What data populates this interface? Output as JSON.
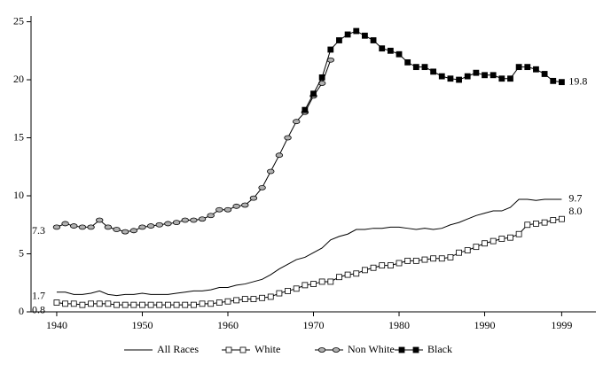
{
  "chart_data": {
    "type": "line",
    "x": [
      1940,
      1941,
      1942,
      1943,
      1944,
      1945,
      1946,
      1947,
      1948,
      1949,
      1950,
      1951,
      1952,
      1953,
      1954,
      1955,
      1956,
      1957,
      1958,
      1959,
      1960,
      1961,
      1962,
      1963,
      1964,
      1965,
      1966,
      1967,
      1968,
      1969,
      1970,
      1971,
      1972,
      1973,
      1974,
      1975,
      1976,
      1977,
      1978,
      1979,
      1980,
      1981,
      1982,
      1983,
      1984,
      1985,
      1986,
      1987,
      1988,
      1989,
      1990,
      1991,
      1992,
      1993,
      1994,
      1995,
      1996,
      1997,
      1998,
      1999
    ],
    "xlim": [
      1937,
      2003
    ],
    "xticks": [
      1940,
      1950,
      1960,
      1970,
      1980,
      1990,
      1999
    ],
    "ylim": [
      0,
      25.5
    ],
    "yticks": [
      0,
      5,
      10,
      15,
      20,
      25
    ],
    "grid": false,
    "series": [
      {
        "name": "All Races",
        "color": "#000000",
        "marker": "none",
        "marker_fill": "none",
        "values": [
          1.7,
          1.7,
          1.5,
          1.5,
          1.6,
          1.8,
          1.5,
          1.4,
          1.5,
          1.5,
          1.6,
          1.5,
          1.5,
          1.5,
          1.6,
          1.7,
          1.8,
          1.8,
          1.9,
          2.1,
          2.1,
          2.3,
          2.4,
          2.6,
          2.8,
          3.2,
          3.7,
          4.1,
          4.5,
          4.7,
          5.1,
          5.5,
          6.2,
          6.5,
          6.7,
          7.1,
          7.1,
          7.2,
          7.2,
          7.3,
          7.3,
          7.2,
          7.1,
          7.2,
          7.1,
          7.2,
          7.5,
          7.7,
          8.0,
          8.3,
          8.5,
          8.7,
          8.7,
          9.0,
          9.7,
          9.7,
          9.6,
          9.7,
          9.7,
          9.7
        ],
        "value_labels": [
          "1.7",
          null,
          null,
          null,
          null,
          null,
          null,
          null,
          null,
          null,
          null,
          null,
          null,
          null,
          null,
          null,
          null,
          null,
          null,
          null,
          null,
          null,
          null,
          null,
          null,
          null,
          null,
          null,
          null,
          null,
          null,
          null,
          null,
          null,
          null,
          null,
          null,
          null,
          null,
          null,
          null,
          null,
          null,
          null,
          null,
          null,
          null,
          null,
          null,
          null,
          null,
          null,
          null,
          null,
          null,
          null,
          null,
          null,
          null,
          "9.7"
        ]
      },
      {
        "name": "White",
        "color": "#000000",
        "marker": "square",
        "marker_fill": "#ffffff",
        "values": [
          0.8,
          0.7,
          0.7,
          0.6,
          0.7,
          0.7,
          0.7,
          0.6,
          0.6,
          0.6,
          0.6,
          0.6,
          0.6,
          0.6,
          0.6,
          0.6,
          0.6,
          0.7,
          0.7,
          0.8,
          0.9,
          1.0,
          1.1,
          1.1,
          1.2,
          1.3,
          1.6,
          1.8,
          2.0,
          2.3,
          2.4,
          2.6,
          2.6,
          3.0,
          3.2,
          3.3,
          3.6,
          3.8,
          4.0,
          4.0,
          4.2,
          4.4,
          4.4,
          4.5,
          4.6,
          4.6,
          4.7,
          5.1,
          5.3,
          5.6,
          5.9,
          6.1,
          6.3,
          6.4,
          6.7,
          7.5,
          7.6,
          7.7,
          7.9,
          8.0
        ],
        "value_labels": [
          "0.8",
          null,
          null,
          null,
          null,
          null,
          null,
          null,
          null,
          null,
          null,
          null,
          null,
          null,
          null,
          null,
          null,
          null,
          null,
          null,
          null,
          null,
          null,
          null,
          null,
          null,
          null,
          null,
          null,
          null,
          null,
          null,
          null,
          null,
          null,
          null,
          null,
          null,
          null,
          null,
          null,
          null,
          null,
          null,
          null,
          null,
          null,
          null,
          null,
          null,
          null,
          null,
          null,
          null,
          null,
          null,
          null,
          null,
          null,
          "8.0"
        ]
      },
      {
        "name": "Non White",
        "color": "#000000",
        "marker": "circle",
        "marker_fill": "#b0b0b0",
        "values": [
          7.3,
          7.6,
          7.4,
          7.3,
          7.3,
          7.9,
          7.3,
          7.1,
          6.9,
          7.0,
          7.3,
          7.4,
          7.5,
          7.6,
          7.7,
          7.9,
          7.9,
          8.0,
          8.3,
          8.8,
          8.8,
          9.1,
          9.2,
          9.8,
          10.7,
          12.1,
          13.5,
          15.0,
          16.4,
          17.2,
          18.6,
          19.7,
          21.7,
          null,
          null,
          null,
          null,
          null,
          null,
          null,
          null,
          null,
          null,
          null,
          null,
          null,
          null,
          null,
          null,
          null,
          null,
          null,
          null,
          null,
          null,
          null,
          null,
          null,
          null,
          null
        ],
        "value_labels": [
          "7.3",
          null,
          null,
          null,
          null,
          null,
          null,
          null,
          null,
          null,
          null,
          null,
          null,
          null,
          null,
          null,
          null,
          null,
          null,
          null,
          null,
          null,
          null,
          null,
          null,
          null,
          null,
          null,
          null,
          null,
          null,
          null,
          null,
          null,
          null,
          null,
          null,
          null,
          null,
          null,
          null,
          null,
          null,
          null,
          null,
          null,
          null,
          null,
          null,
          null,
          null,
          null,
          null,
          null,
          null,
          null,
          null,
          null,
          null,
          null
        ]
      },
      {
        "name": "Black",
        "color": "#000000",
        "marker": "square",
        "marker_fill": "#000000",
        "values": [
          null,
          null,
          null,
          null,
          null,
          null,
          null,
          null,
          null,
          null,
          null,
          null,
          null,
          null,
          null,
          null,
          null,
          null,
          null,
          null,
          null,
          null,
          null,
          null,
          null,
          null,
          null,
          null,
          null,
          17.4,
          18.8,
          20.2,
          22.6,
          23.4,
          23.9,
          24.2,
          23.8,
          23.4,
          22.7,
          22.5,
          22.2,
          21.5,
          21.1,
          21.1,
          20.7,
          20.3,
          20.1,
          20.0,
          20.3,
          20.6,
          20.4,
          20.4,
          20.1,
          20.1,
          21.1,
          21.1,
          20.9,
          20.5,
          19.9,
          19.8
        ],
        "value_labels": [
          null,
          null,
          null,
          null,
          null,
          null,
          null,
          null,
          null,
          null,
          null,
          null,
          null,
          null,
          null,
          null,
          null,
          null,
          null,
          null,
          null,
          null,
          null,
          null,
          null,
          null,
          null,
          null,
          null,
          null,
          null,
          null,
          null,
          null,
          null,
          null,
          null,
          null,
          null,
          null,
          null,
          null,
          null,
          null,
          null,
          null,
          null,
          null,
          null,
          null,
          null,
          null,
          null,
          null,
          null,
          null,
          null,
          null,
          null,
          "19.8"
        ]
      }
    ]
  }
}
